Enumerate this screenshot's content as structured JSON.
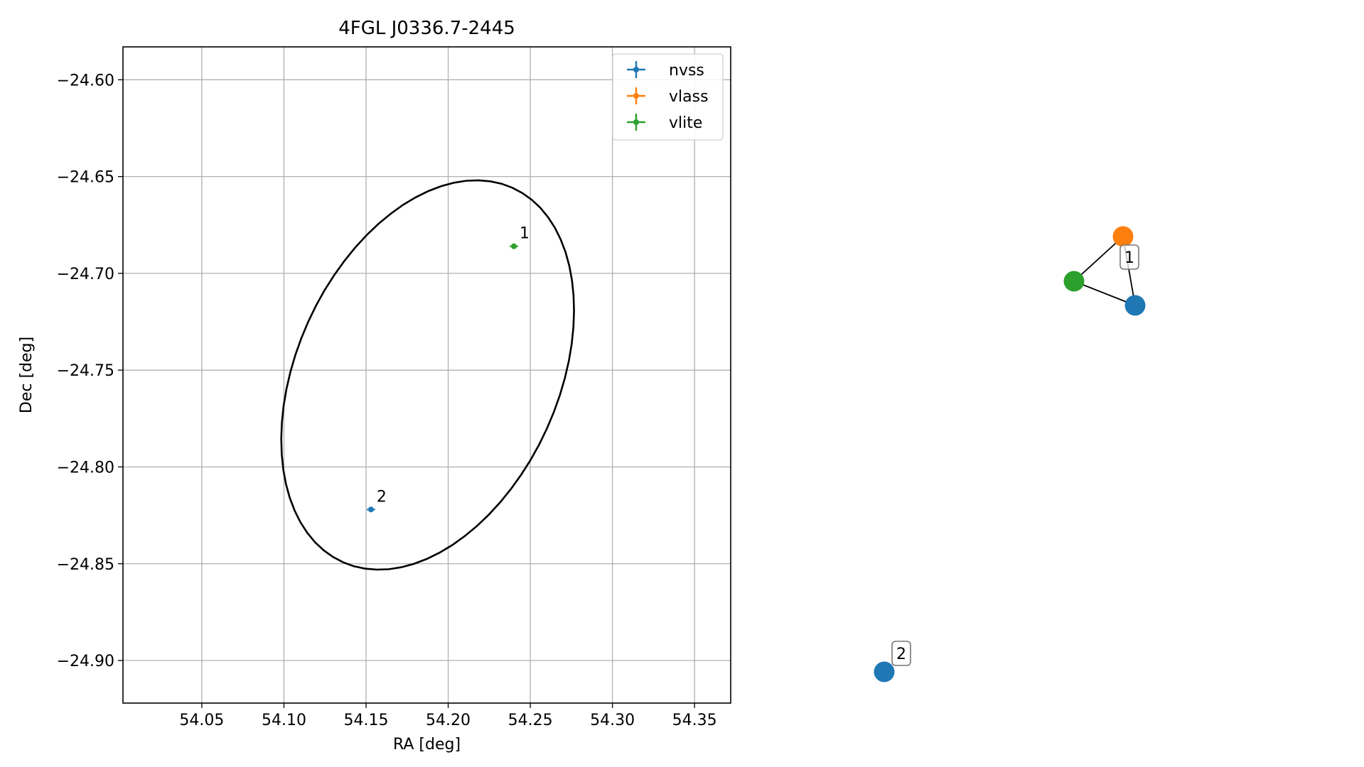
{
  "chart_data": [
    {
      "type": "scatter",
      "title": "4FGL J0336.7-2445",
      "xlabel": "RA [deg]",
      "ylabel": "Dec [deg]",
      "xlim": [
        54.002,
        54.372
      ],
      "ylim": [
        -24.922,
        -24.583
      ],
      "x_ticks": [
        54.05,
        54.1,
        54.15,
        54.2,
        54.25,
        54.3,
        54.35
      ],
      "x_tick_labels": [
        "54.05",
        "54.10",
        "54.15",
        "54.20",
        "54.25",
        "54.30",
        "54.35"
      ],
      "y_ticks": [
        -24.6,
        -24.65,
        -24.7,
        -24.75,
        -24.8,
        -24.85,
        -24.9
      ],
      "y_tick_labels": [
        "−24.60",
        "−24.65",
        "−24.70",
        "−24.75",
        "−24.80",
        "−24.85",
        "−24.90"
      ],
      "grid": true,
      "legend_position": "top-right",
      "series": [
        {
          "name": "nvss",
          "color": "#1f77b4",
          "points": [
            {
              "x": 54.153,
              "y": -24.822,
              "label": "2"
            }
          ]
        },
        {
          "name": "vlass",
          "color": "#ff7f0e",
          "points": []
        },
        {
          "name": "vlite",
          "color": "#2ca02c",
          "points": [
            {
              "x": 54.24,
              "y": -24.686,
              "label": "1"
            }
          ]
        }
      ],
      "ellipse": {
        "center_ra": 54.1875,
        "center_dec": -24.7525,
        "semi_major_deg": 0.1105,
        "semi_minor_deg": 0.0765,
        "angle_deg": 55,
        "color": "#000000"
      }
    },
    {
      "type": "graph",
      "nodes": [
        {
          "id": "vlass-1",
          "series": "vlass",
          "color": "#ff7f0e"
        },
        {
          "id": "vlite-1",
          "series": "vlite",
          "color": "#2ca02c"
        },
        {
          "id": "nvss-1",
          "series": "nvss",
          "color": "#1f77b4"
        },
        {
          "id": "nvss-2",
          "series": "nvss",
          "color": "#1f77b4"
        }
      ],
      "edges": [
        [
          "vlass-1",
          "vlite-1"
        ],
        [
          "vlass-1",
          "nvss-1"
        ],
        [
          "vlite-1",
          "nvss-1"
        ]
      ],
      "group_labels": [
        {
          "label": "1",
          "nodes": [
            "vlass-1",
            "vlite-1",
            "nvss-1"
          ]
        },
        {
          "label": "2",
          "nodes": [
            "nvss-2"
          ]
        }
      ]
    }
  ]
}
